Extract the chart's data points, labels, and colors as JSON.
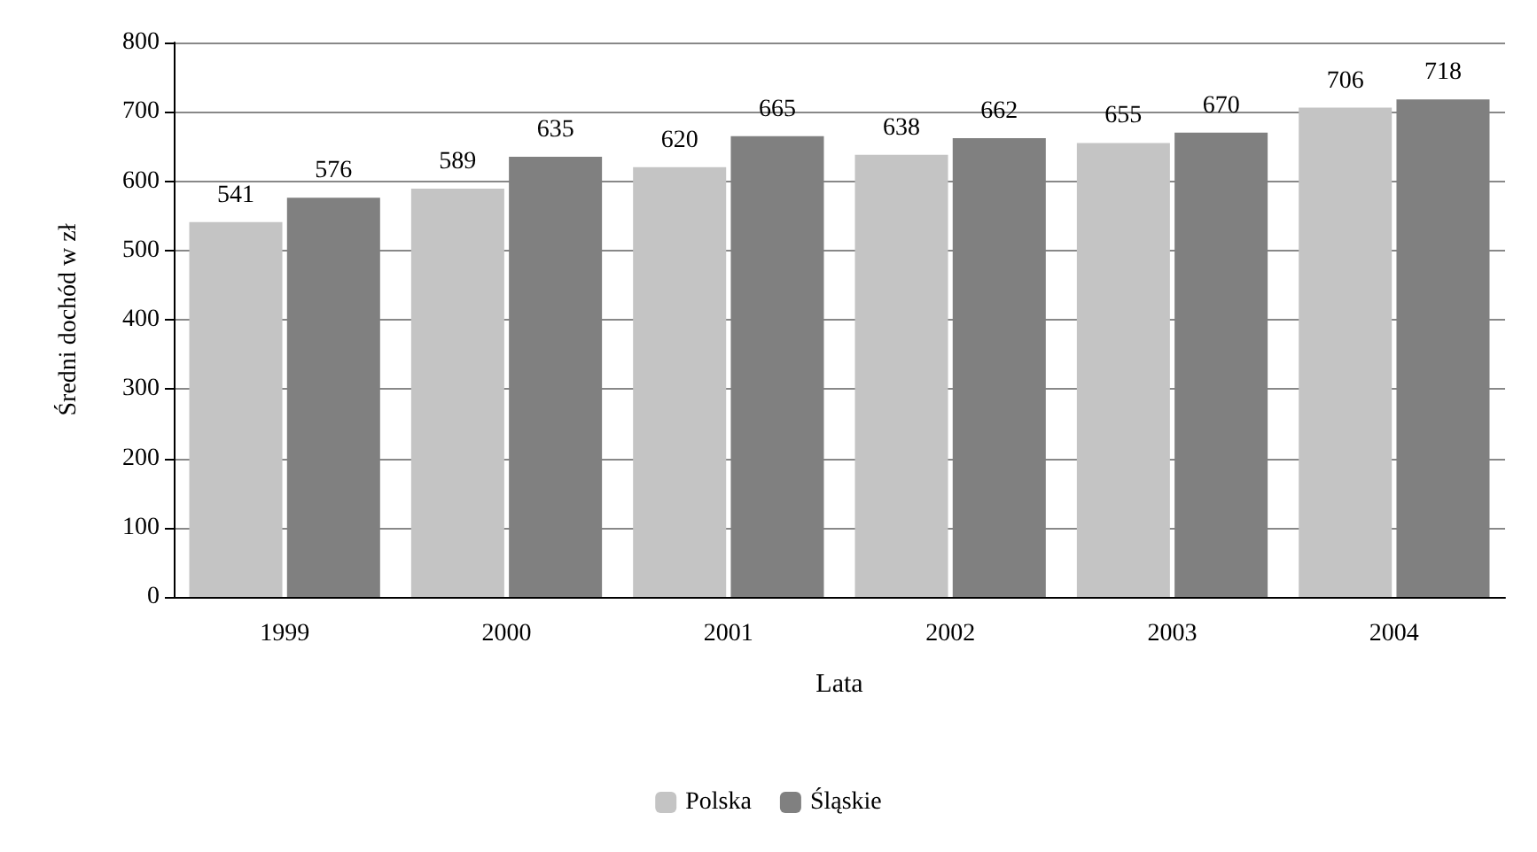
{
  "chart_data": {
    "type": "bar",
    "xlabel": "Lata",
    "ylabel": "Średni dochód w zł",
    "categories": [
      "1999",
      "2000",
      "2001",
      "2002",
      "2003",
      "2004"
    ],
    "series": [
      {
        "name": "Polska",
        "color": "#c4c4c4",
        "values": [
          541,
          589,
          620,
          638,
          655,
          706
        ]
      },
      {
        "name": "Śląskie",
        "color": "#808080",
        "values": [
          576,
          635,
          665,
          662,
          670,
          718
        ]
      }
    ],
    "ylim": [
      0,
      800
    ],
    "yticks": [
      0,
      100,
      200,
      300,
      400,
      500,
      600,
      700,
      800
    ],
    "grid": "y",
    "legend": "bottom",
    "data_labels": true
  }
}
